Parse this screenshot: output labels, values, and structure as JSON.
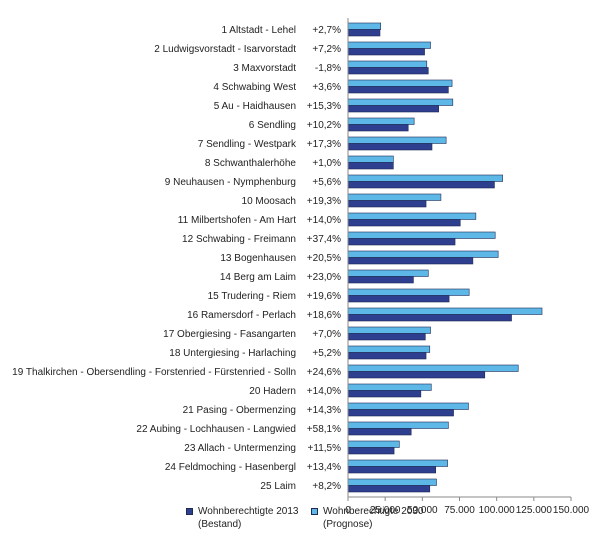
{
  "chart_data": {
    "type": "bar",
    "orientation": "horizontal",
    "categories": [
      "1 Altstadt - Lehel",
      "2 Ludwigsvorstadt - Isarvorstadt",
      "3 Maxvorstadt",
      "4 Schwabing West",
      "5 Au - Haidhausen",
      "6 Sendling",
      "7 Sendling - Westpark",
      "8 Schwanthalerhöhe",
      "9 Neuhausen - Nymphenburg",
      "10 Moosach",
      "11 Milbertshofen - Am Hart",
      "12 Schwabing - Freimann",
      "13 Bogenhausen",
      "14 Berg am Laim",
      "15 Trudering - Riem",
      "16 Ramersdorf - Perlach",
      "17 Obergiesing - Fasangarten",
      "18 Untergiesing - Harlaching",
      "19 Thalkirchen - Obersendling - Forstenried - Fürstenried - Solln",
      "20 Hadern",
      "21 Pasing - Obermenzing",
      "22 Aubing - Lochhausen - Langwied",
      "23 Allach - Untermenzing",
      "24 Feldmoching - Hasenbergl",
      "25 Laim"
    ],
    "change_labels": [
      "+2,7%",
      "+7,2%",
      "-1,8%",
      "+3,6%",
      "+15,3%",
      "+10,2%",
      "+17,3%",
      "+1,0%",
      "+5,6%",
      "+19,3%",
      "+14,0%",
      "+37,4%",
      "+20,5%",
      "+23,0%",
      "+19,6%",
      "+18,6%",
      "+7,0%",
      "+5,2%",
      "+24,6%",
      "+14,0%",
      "+14,3%",
      "+58,1%",
      "+11,5%",
      "+13,4%",
      "+8,2%"
    ],
    "series": [
      {
        "name": "Wohnberechtigte 2013\n(Bestand)",
        "color": "#2e3f8f",
        "values": [
          21500,
          51500,
          54000,
          67500,
          61000,
          40500,
          56500,
          30500,
          98500,
          52500,
          75500,
          72000,
          84000,
          44000,
          68000,
          110000,
          52000,
          52500,
          92000,
          49000,
          71000,
          42500,
          31000,
          59000,
          55000
        ]
      },
      {
        "name": "Wohnberechtigte 2030\n(Prognose)",
        "color": "#5db8e8",
        "values": [
          22000,
          55500,
          53000,
          70000,
          70500,
          44500,
          66000,
          30500,
          104000,
          62500,
          86000,
          99000,
          101000,
          54000,
          81500,
          130500,
          55500,
          55000,
          114500,
          56000,
          81000,
          67500,
          34500,
          67000,
          59500
        ]
      }
    ],
    "xticks": [
      "0",
      "25.000",
      "50.000",
      "75.000",
      "100.000",
      "125.000",
      "150.000"
    ],
    "xlim": [
      0,
      150000
    ],
    "grid": false,
    "legend": "bottom"
  }
}
